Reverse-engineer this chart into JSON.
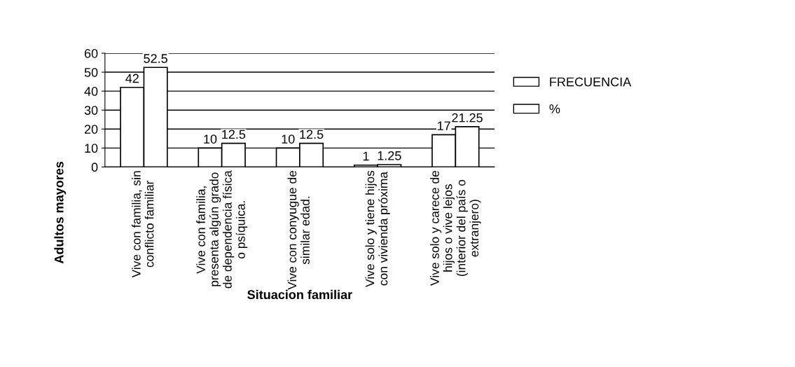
{
  "chart_data": {
    "type": "bar",
    "categories": [
      "Vive con familia, sin\nconflicto familiar",
      "Vive con familia,\npresenta algún grado\nde dependencia física\no psíquica.",
      "Vive con conyugue de\nsimilar edad.",
      "Vive solo y tiene hijos\ncon vivienda próxima",
      "Vive solo y carece de\nhijos o vive lejos\n(interior del país o\nextranjero)"
    ],
    "series": [
      {
        "name": "FRECUENCIA",
        "color": "#ffffff",
        "values": [
          42,
          10,
          10,
          1,
          17
        ]
      },
      {
        "name": "%",
        "color": "#ffffff",
        "values": [
          52.5,
          12.5,
          12.5,
          1.25,
          21.25
        ]
      }
    ],
    "xlabel": "Situacion familiar",
    "ylabel": "Adultos mayores",
    "ylim": [
      0,
      60
    ],
    "yticks": [
      0,
      10,
      20,
      30,
      40,
      50,
      60
    ],
    "grid": "y",
    "legend": "right",
    "data_labels": true
  }
}
